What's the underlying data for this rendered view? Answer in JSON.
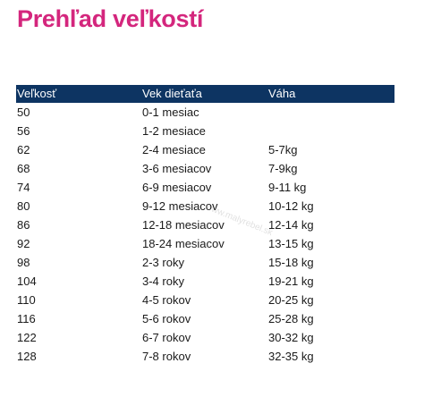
{
  "title": "Prehľad veľkostí",
  "table": {
    "headers": [
      "Veľkosť",
      "Vek dieťaťa",
      "Váha"
    ],
    "rows": [
      [
        "50",
        "0-1 mesiac",
        ""
      ],
      [
        "56",
        "1-2 mesiace",
        ""
      ],
      [
        "62",
        "2-4 mesiace",
        "5-7kg"
      ],
      [
        "68",
        "3-6 mesiacov",
        "7-9kg"
      ],
      [
        "74",
        "6-9 mesiacov",
        "9-11 kg"
      ],
      [
        "80",
        "9-12 mesiacov",
        "10-12 kg"
      ],
      [
        "86",
        "12-18 mesiacov",
        "12-14 kg"
      ],
      [
        "92",
        "18-24 mesiacov",
        "13-15 kg"
      ],
      [
        "98",
        "2-3 roky",
        "15-18 kg"
      ],
      [
        "104",
        "3-4 roky",
        "19-21 kg"
      ],
      [
        "110",
        "4-5 rokov",
        "20-25 kg"
      ],
      [
        "116",
        "5-6 rokov",
        "25-28 kg"
      ],
      [
        "122",
        "6-7 rokov",
        "30-32 kg"
      ],
      [
        "128",
        "7-8 rokov",
        "32-35 kg"
      ]
    ]
  },
  "watermark": "www.malyrebel.sk",
  "colors": {
    "title": "#d4267d",
    "header_bg": "#0d3462",
    "header_text": "#ffffff"
  }
}
